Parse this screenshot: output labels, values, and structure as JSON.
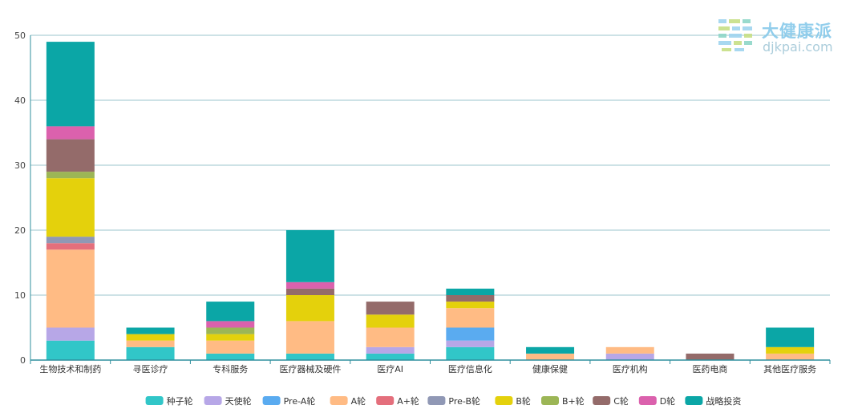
{
  "brand": {
    "name": "大健康派",
    "domain": "djkpai.com",
    "icon": "bars-logo-icon",
    "colors": [
      "#9fd4ef",
      "#c7df86",
      "#8fd6c8"
    ]
  },
  "chart_data": {
    "type": "bar",
    "stacked": true,
    "categories": [
      "生物技术和制药",
      "寻医诊疗",
      "专科服务",
      "医疗器械及硬件",
      "医疗AI",
      "医疗信息化",
      "健康保健",
      "医疗机构",
      "医药电商",
      "其他医疗服务"
    ],
    "ylim": [
      0,
      50
    ],
    "yticks": [
      0,
      10,
      20,
      30,
      40,
      50
    ],
    "grid": true,
    "legend_position": "bottom",
    "series": [
      {
        "name": "种子轮",
        "color": "#31c6c8",
        "values": [
          3,
          2,
          1,
          1,
          1,
          2,
          0,
          0,
          0,
          0
        ]
      },
      {
        "name": "天使轮",
        "color": "#b7a7e7",
        "values": [
          2,
          0,
          0,
          0,
          1,
          1,
          0,
          1,
          0,
          0
        ]
      },
      {
        "name": "Pre-A轮",
        "color": "#5aabf0",
        "values": [
          0,
          0,
          0,
          0,
          0,
          2,
          0,
          0,
          0,
          0
        ]
      },
      {
        "name": "A轮",
        "color": "#ffbb84",
        "values": [
          12,
          1,
          2,
          5,
          3,
          3,
          1,
          1,
          0,
          1
        ]
      },
      {
        "name": "A+轮",
        "color": "#e46f7c",
        "values": [
          1,
          0,
          0,
          0,
          0,
          0,
          0,
          0,
          0,
          0
        ]
      },
      {
        "name": "Pre-B轮",
        "color": "#9098b5",
        "values": [
          1,
          0,
          0,
          0,
          0,
          0,
          0,
          0,
          0,
          0
        ]
      },
      {
        "name": "B轮",
        "color": "#e4d10c",
        "values": [
          9,
          1,
          1,
          4,
          2,
          1,
          0,
          0,
          0,
          1
        ]
      },
      {
        "name": "B+轮",
        "color": "#9cb656",
        "values": [
          1,
          0,
          1,
          0,
          0,
          0,
          0,
          0,
          0,
          0
        ]
      },
      {
        "name": "C轮",
        "color": "#946b6a",
        "values": [
          5,
          0,
          0,
          1,
          2,
          1,
          0,
          0,
          1,
          0
        ]
      },
      {
        "name": "D轮",
        "color": "#db61ad",
        "values": [
          2,
          0,
          1,
          1,
          0,
          0,
          0,
          0,
          0,
          0
        ]
      },
      {
        "name": "战略投资",
        "color": "#0ba6a6",
        "values": [
          13,
          1,
          3,
          8,
          0,
          1,
          1,
          0,
          0,
          3
        ]
      }
    ]
  }
}
